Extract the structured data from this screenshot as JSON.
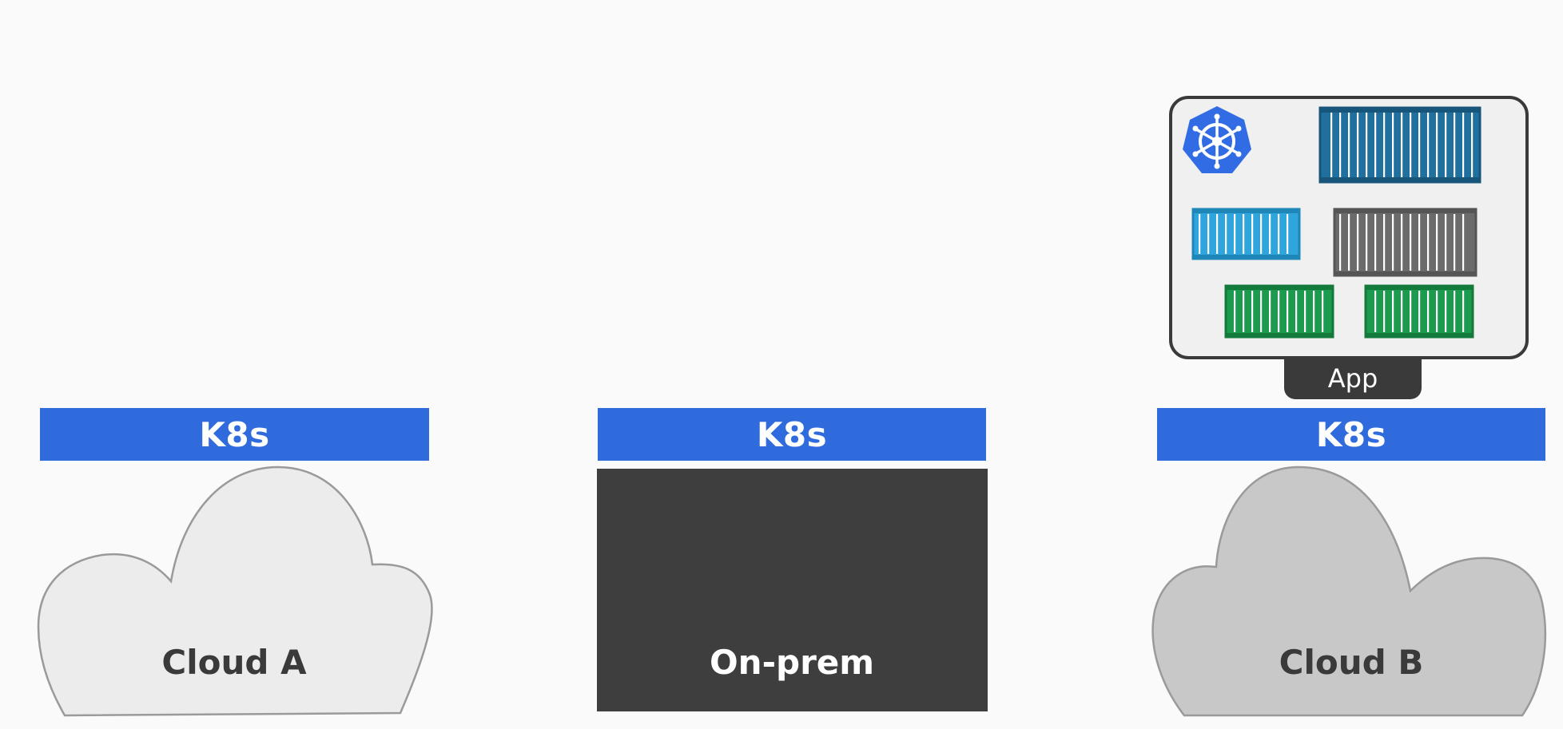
{
  "environments": [
    {
      "id": "cloud-a",
      "platform_label": "K8s",
      "label": "Cloud A"
    },
    {
      "id": "on-prem",
      "platform_label": "K8s",
      "label": "On-prem"
    },
    {
      "id": "cloud-b",
      "platform_label": "K8s",
      "label": "Cloud B"
    }
  ],
  "app": {
    "label": "App",
    "logo_icon": "kubernetes-logo-icon",
    "container_icons": [
      "blue-container-icon",
      "light-blue-container-icon",
      "gray-container-icon",
      "green-container-icon",
      "green-container-icon"
    ]
  },
  "colors": {
    "k8s_bar": "#2f6bdd",
    "on_prem_box": "#3e3e3e",
    "cloud_a_fill": "#ececec",
    "cloud_b_fill": "#c8c8c8",
    "app_panel_fill": "#f0f0f0",
    "container_blue": "#1f6f9f",
    "container_light_blue": "#2ea6dd",
    "container_gray": "#6b6b6b",
    "container_green": "#1c9a4e",
    "kubernetes_logo": "#326ce5"
  }
}
